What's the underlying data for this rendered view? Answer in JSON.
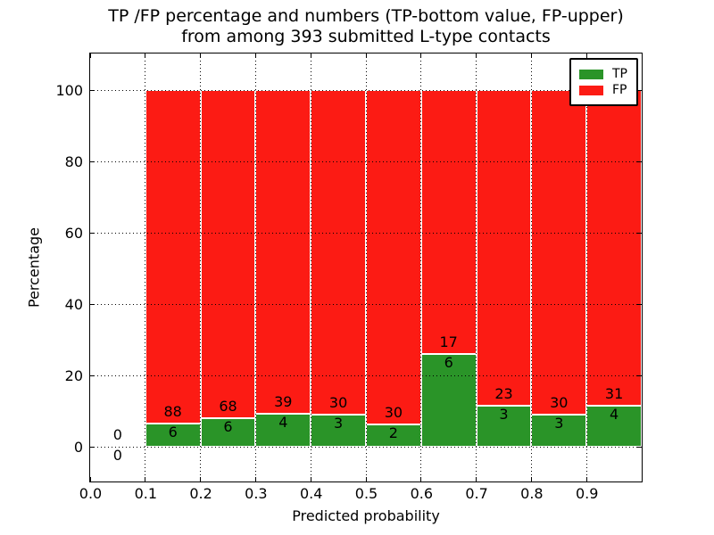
{
  "figure": {
    "title_line1": "TP /FP percentage and numbers (TP-bottom value, FP-upper)",
    "title_line2": "from among 393 submitted L-type contacts"
  },
  "chart_data": {
    "type": "bar",
    "stacked": true,
    "title": "TP /FP percentage and numbers (TP-bottom value, FP-upper)\nfrom among 393 submitted L-type contacts",
    "xlabel": "Predicted probability",
    "ylabel": "Percentage",
    "xlim": [
      0.0,
      1.0
    ],
    "ylim": [
      -9.75,
      110.25
    ],
    "xticks": [
      0.0,
      0.1,
      0.2,
      0.3,
      0.4,
      0.5,
      0.6,
      0.7,
      0.8,
      0.9
    ],
    "xtick_labels": [
      "0.0",
      "0.1",
      "0.2",
      "0.3",
      "0.4",
      "0.5",
      "0.6",
      "0.7",
      "0.8",
      "0.9"
    ],
    "yticks": [
      0,
      20,
      40,
      60,
      80,
      100
    ],
    "ytick_labels": [
      "0",
      "20",
      "40",
      "60",
      "80",
      "100"
    ],
    "grid": "dotted, black, drawn on top of bars",
    "bar_width": 0.1,
    "colors": {
      "tp": "#2a9428",
      "fp": "#fc1b14",
      "bar_edge": "#ffffff"
    },
    "legend": {
      "position": "upper-right",
      "entries": [
        {
          "label": "TP",
          "color": "#2a9428"
        },
        {
          "label": "FP",
          "color": "#fc1b14"
        }
      ]
    },
    "total_contacts": 393,
    "bins": [
      {
        "x_start": 0.0,
        "x_end": 0.1,
        "tp_count": 0,
        "fp_count": 0,
        "tp_pct": 0.0,
        "fp_pct": 0.0
      },
      {
        "x_start": 0.1,
        "x_end": 0.2,
        "tp_count": 6,
        "fp_count": 88,
        "tp_pct": 6.38,
        "fp_pct": 93.62
      },
      {
        "x_start": 0.2,
        "x_end": 0.3,
        "tp_count": 6,
        "fp_count": 68,
        "tp_pct": 8.11,
        "fp_pct": 91.89
      },
      {
        "x_start": 0.3,
        "x_end": 0.4,
        "tp_count": 4,
        "fp_count": 39,
        "tp_pct": 9.3,
        "fp_pct": 90.7
      },
      {
        "x_start": 0.4,
        "x_end": 0.5,
        "tp_count": 3,
        "fp_count": 30,
        "tp_pct": 9.09,
        "fp_pct": 90.91
      },
      {
        "x_start": 0.5,
        "x_end": 0.6,
        "tp_count": 2,
        "fp_count": 30,
        "tp_pct": 6.25,
        "fp_pct": 93.75
      },
      {
        "x_start": 0.6,
        "x_end": 0.7,
        "tp_count": 6,
        "fp_count": 17,
        "tp_pct": 26.09,
        "fp_pct": 73.91
      },
      {
        "x_start": 0.7,
        "x_end": 0.8,
        "tp_count": 3,
        "fp_count": 23,
        "tp_pct": 11.54,
        "fp_pct": 88.46
      },
      {
        "x_start": 0.8,
        "x_end": 0.9,
        "tp_count": 3,
        "fp_count": 30,
        "tp_pct": 9.09,
        "fp_pct": 90.91
      },
      {
        "x_start": 0.9,
        "x_end": 1.0,
        "tp_count": 4,
        "fp_count": 31,
        "tp_pct": 11.43,
        "fp_pct": 88.57
      }
    ]
  }
}
